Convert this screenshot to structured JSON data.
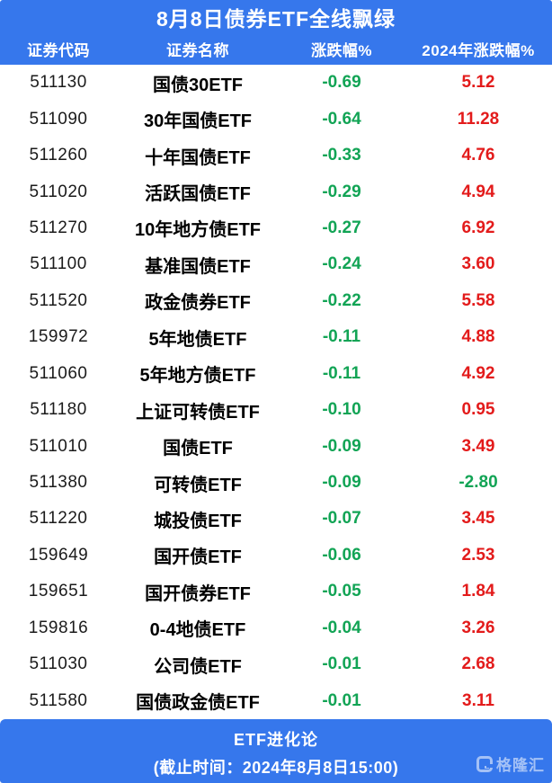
{
  "title": "8月8日债券ETF全线飘绿",
  "colors": {
    "brand_blue": "#3677EC",
    "down_green": "#12A455",
    "up_red": "#E31B1B",
    "body_text": "#1B1B1B"
  },
  "chart_data": {
    "type": "table",
    "title": "8月8日债券ETF全线飘绿",
    "columns": [
      "证券代码",
      "证券名称",
      "涨跌幅%",
      "2024年涨跌幅%"
    ],
    "rows": [
      [
        "511130",
        "国债30ETF",
        -0.69,
        5.12
      ],
      [
        "511090",
        "30年国债ETF",
        -0.64,
        11.28
      ],
      [
        "511260",
        "十年国债ETF",
        -0.33,
        4.76
      ],
      [
        "511020",
        "活跃国债ETF",
        -0.29,
        4.94
      ],
      [
        "511270",
        "10年地方债ETF",
        -0.27,
        6.92
      ],
      [
        "511100",
        "基准国债ETF",
        -0.24,
        3.6
      ],
      [
        "511520",
        "政金债券ETF",
        -0.22,
        5.58
      ],
      [
        "159972",
        "5年地债ETF",
        -0.11,
        4.88
      ],
      [
        "511060",
        "5年地方债ETF",
        -0.11,
        4.92
      ],
      [
        "511180",
        "上证可转债ETF",
        -0.1,
        0.95
      ],
      [
        "511010",
        "国债ETF",
        -0.09,
        3.49
      ],
      [
        "511380",
        "可转债ETF",
        -0.09,
        -2.8
      ],
      [
        "511220",
        "城投债ETF",
        -0.07,
        3.45
      ],
      [
        "159649",
        "国开债ETF",
        -0.06,
        2.53
      ],
      [
        "159651",
        "国开债券ETF",
        -0.05,
        1.84
      ],
      [
        "159816",
        "0-4地债ETF",
        -0.04,
        3.26
      ],
      [
        "511030",
        "公司债ETF",
        -0.01,
        2.68
      ],
      [
        "511580",
        "国债政金债ETF",
        -0.01,
        3.11
      ]
    ],
    "value_format": "2-decimal percent, negative shown green, positive shown red",
    "legend_position": "none",
    "grid": false
  },
  "footer": {
    "source": "ETF进化论",
    "timestamp": "(截止时间：2024年8月8日15:00)",
    "logo_text": "格隆汇"
  }
}
